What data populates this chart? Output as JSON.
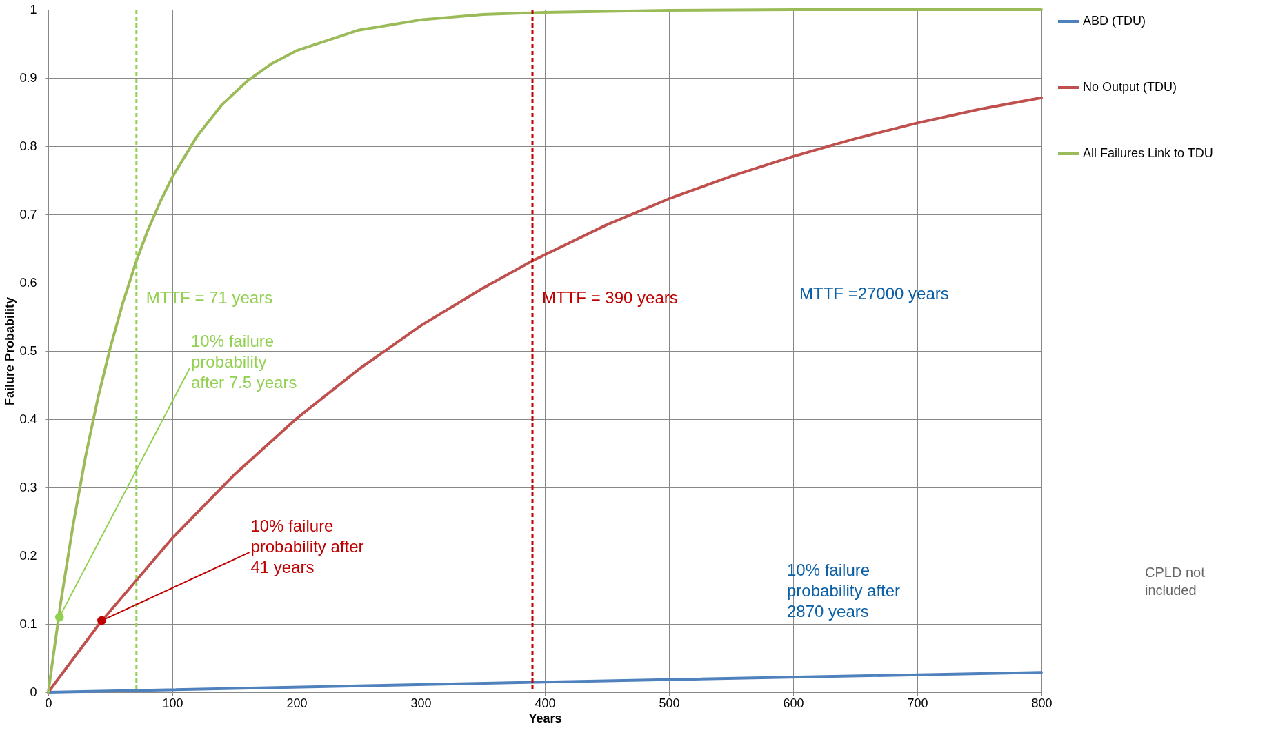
{
  "chart_data": {
    "type": "line",
    "xlabel": "Years",
    "ylabel": "Failure Probability",
    "xlim": [
      0,
      800
    ],
    "xticks": [
      0,
      100,
      200,
      300,
      400,
      500,
      600,
      700,
      800
    ],
    "ylim": [
      0,
      1
    ],
    "yticks": [
      0,
      0.1,
      0.2,
      0.3,
      0.4,
      0.5,
      0.6,
      0.7,
      0.8,
      0.9,
      1
    ],
    "grid": true,
    "legend": "right",
    "line_style": "solid",
    "series": [
      {
        "name": "ABD (TDU)",
        "color": "#4f81bd",
        "x": [
          0,
          400,
          800
        ],
        "values": [
          0,
          0.015,
          0.029
        ]
      },
      {
        "name": "No Output (TDU)",
        "color": "#c0504d",
        "x": [
          0,
          41,
          100,
          150,
          200,
          250,
          300,
          350,
          390,
          450,
          500,
          550,
          600,
          650,
          700,
          750,
          800
        ],
        "values": [
          0,
          0.1,
          0.226,
          0.319,
          0.401,
          0.473,
          0.537,
          0.592,
          0.632,
          0.685,
          0.723,
          0.756,
          0.785,
          0.811,
          0.834,
          0.854,
          0.871
        ]
      },
      {
        "name": "All Failures Link to TDU",
        "color": "#9bbb59",
        "x": [
          0,
          10,
          20,
          30,
          40,
          50,
          60,
          71,
          80,
          90,
          100,
          120,
          140,
          160,
          180,
          200,
          250,
          300,
          350,
          400,
          500,
          600,
          700,
          800
        ],
        "values": [
          0,
          0.131,
          0.245,
          0.345,
          0.431,
          0.505,
          0.57,
          0.632,
          0.676,
          0.718,
          0.755,
          0.815,
          0.861,
          0.895,
          0.921,
          0.94,
          0.97,
          0.985,
          0.993,
          0.996,
          0.999,
          1,
          1,
          1
        ]
      },
      {
        "type": "scatter",
        "color": "#92d050",
        "x": [
          9
        ],
        "values": [
          0.11
        ]
      },
      {
        "type": "scatter",
        "color": "#c00000",
        "x": [
          43
        ],
        "values": [
          0.105
        ]
      }
    ],
    "ref_lines": [
      {
        "axis": "x",
        "value": 71,
        "label": "MTTF = 71 years",
        "color": "#92d050",
        "line_style": "dashed"
      },
      {
        "axis": "x",
        "value": 390,
        "label": "MTTF = 390 years",
        "color": "#c00000",
        "line_style": "dashed"
      }
    ],
    "annotations": [
      {
        "text": "10% failure probability after 7.5 years",
        "x": 9,
        "y": 0.11
      },
      {
        "text": "10% failure probability after 41 years",
        "x": 43,
        "y": 0.105
      },
      "10% failure probability after 2870 years",
      "MTTF =27000 years",
      "CPLD not included"
    ]
  }
}
